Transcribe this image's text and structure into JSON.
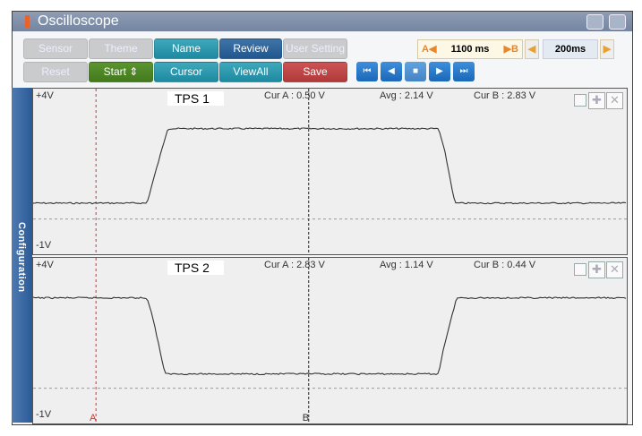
{
  "window": {
    "title": "Oscilloscope"
  },
  "toolbar": {
    "row1": [
      "Sensor",
      "Theme",
      "Name",
      "Review",
      "User Setting"
    ],
    "row2": [
      "Reset",
      "Start ⇕",
      "Cursor",
      "ViewAll",
      "Save"
    ],
    "cursor_span": {
      "a": "A◀",
      "value": "1100 ms",
      "b": "▶B"
    },
    "time_div": "200ms",
    "playback": [
      "⏮",
      "◀",
      "■",
      "▶",
      "⏭"
    ]
  },
  "sidebar": {
    "label": "Configuration"
  },
  "colors": {
    "trace": "#333333",
    "cursor_a": "#e03030",
    "cursor_b": "#222222"
  },
  "chart_data": [
    {
      "type": "line",
      "name": "TPS 1",
      "ylim": [
        -1,
        4
      ],
      "ytick_top": "+4V",
      "ytick_bottom": "-1V",
      "xlim": [
        0,
        3070
      ],
      "cur_a": "Cur A : 0.50 V",
      "avg": "Avg : 2.14 V",
      "cur_b": "Cur B : 2.83 V",
      "x": [
        0,
        589,
        620,
        696,
        2097,
        2130,
        2181,
        3070
      ],
      "y": [
        0.5,
        0.5,
        1.2,
        2.85,
        2.85,
        2.1,
        0.5,
        0.5
      ]
    },
    {
      "type": "line",
      "name": "TPS 2",
      "ylim": [
        -1,
        4
      ],
      "ytick_top": "+4V",
      "ytick_bottom": "-1V",
      "xlim": [
        0,
        3070
      ],
      "cur_a": "Cur A : 2.83 V",
      "avg": "Avg : 1.14 V",
      "cur_b": "Cur B : 0.44 V",
      "x": [
        0,
        589,
        620,
        682,
        2097,
        2120,
        2190,
        3070
      ],
      "y": [
        2.85,
        2.85,
        2.2,
        0.45,
        0.45,
        1.2,
        2.85,
        2.85
      ]
    }
  ],
  "cursors": {
    "a_label": "A",
    "b_label": "B",
    "a_ms": 325,
    "b_ms": 1425
  }
}
